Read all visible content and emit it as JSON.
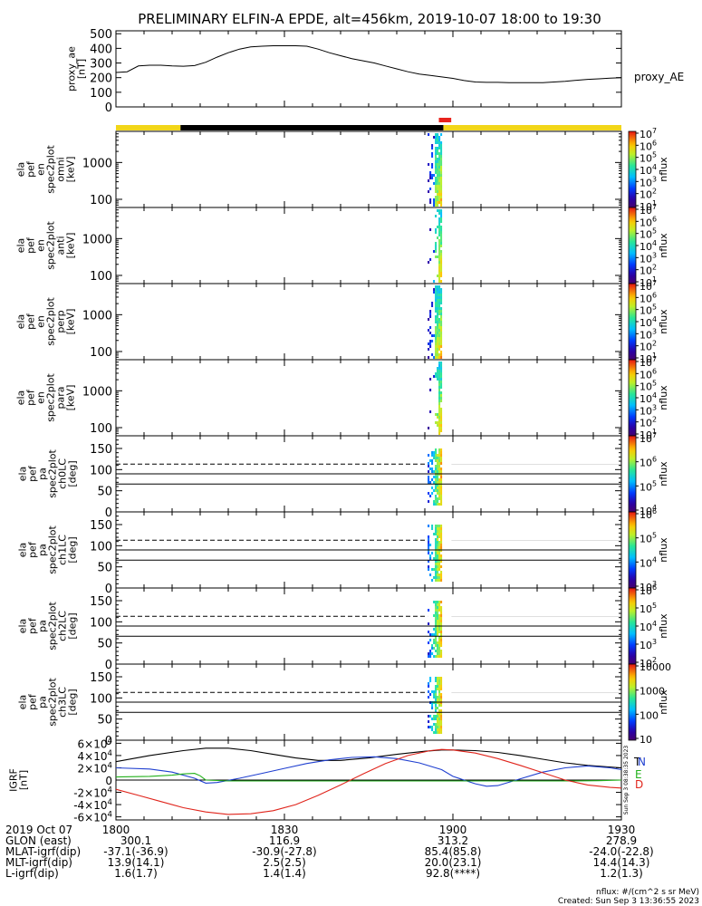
{
  "title": "PRELIMINARY ELFIN-A EPDE, alt=456km, 2019-10-07 18:00 to 19:30",
  "colors": {
    "axis": "#000000",
    "line": "#000000",
    "bar_sunlit": "#f2d619",
    "bar_shadow": "#000000",
    "bar_science": "#e8231c",
    "grf_n": "#1f3fd0",
    "grf_e": "#22b11b",
    "grf_d": "#e0241b",
    "grf_total": "#000000"
  },
  "orbit_bar": {
    "segments": [
      {
        "from": 1800,
        "to": 1811.5,
        "state": "sunlit"
      },
      {
        "from": 1811.5,
        "to": 1858.3,
        "state": "shadow"
      },
      {
        "from": 1858.3,
        "to": 1930,
        "state": "sunlit"
      }
    ],
    "science_zone": [
      1857.5,
      1859.7
    ]
  },
  "chart_data": [
    {
      "type": "line",
      "id": "proxy_ae",
      "ylabel": "proxy_ae\n[nT]",
      "legend": "proxy_AE",
      "ylim": [
        0,
        520
      ],
      "yticks": [
        0,
        100,
        200,
        300,
        400,
        500
      ],
      "x": [
        1800,
        1802,
        1804,
        1806,
        1808,
        1810,
        1812,
        1814,
        1816,
        1818,
        1820,
        1822,
        1824,
        1826,
        1828,
        1830,
        1832,
        1834,
        1836,
        1838,
        1840,
        1842,
        1844,
        1846,
        1848,
        1850,
        1852,
        1854,
        1856,
        1858,
        1900,
        1902,
        1904,
        1906,
        1908,
        1910,
        1912,
        1914,
        1916,
        1918,
        1920,
        1922,
        1924,
        1926,
        1928,
        1930
      ],
      "y": [
        235,
        240,
        280,
        285,
        285,
        280,
        278,
        282,
        305,
        340,
        370,
        395,
        410,
        415,
        418,
        418,
        418,
        415,
        395,
        370,
        350,
        330,
        315,
        300,
        280,
        260,
        240,
        225,
        215,
        205,
        195,
        180,
        170,
        168,
        168,
        166,
        165,
        165,
        166,
        170,
        175,
        182,
        188,
        192,
        196,
        200
      ]
    },
    {
      "type": "heatmap",
      "id": "omni",
      "ylabel": "ela\npef\nen\nspec2plot\nomni\n[keV]",
      "yscale": "log",
      "ylim": [
        60,
        7000
      ],
      "yticks": [
        100,
        1000
      ],
      "colorbar": {
        "label": "nflux",
        "ticks": [
          "10^1",
          "10^2",
          "10^3",
          "10^4",
          "10^5",
          "10^6",
          "10^7"
        ]
      },
      "active_time": [
        1855.5,
        1857.8
      ]
    },
    {
      "type": "heatmap",
      "id": "anti",
      "ylabel": "ela\npef\nen\nspec2plot\nanti\n[keV]",
      "yscale": "log",
      "ylim": [
        60,
        7000
      ],
      "yticks": [
        100,
        1000
      ],
      "colorbar": {
        "label": "nflux",
        "ticks": [
          "10^1",
          "10^2",
          "10^3",
          "10^4",
          "10^5",
          "10^6",
          "10^7"
        ]
      },
      "active_time": [
        1855.5,
        1857.8
      ]
    },
    {
      "type": "heatmap",
      "id": "perp",
      "ylabel": "ela\npef\nen\nspec2plot\nperp\n[keV]",
      "yscale": "log",
      "ylim": [
        60,
        7000
      ],
      "yticks": [
        100,
        1000
      ],
      "colorbar": {
        "label": "nflux",
        "ticks": [
          "10^1",
          "10^2",
          "10^3",
          "10^4",
          "10^5",
          "10^6",
          "10^7"
        ]
      },
      "active_time": [
        1855.5,
        1857.8
      ]
    },
    {
      "type": "heatmap",
      "id": "para",
      "ylabel": "ela\npef\nen\nspec2plot\npara\n[keV]",
      "yscale": "log",
      "ylim": [
        60,
        7000
      ],
      "yticks": [
        100,
        1000
      ],
      "colorbar": {
        "label": "nflux",
        "ticks": [
          "10^1",
          "10^2",
          "10^3",
          "10^4",
          "10^5",
          "10^6",
          "10^7"
        ]
      },
      "active_time": [
        1855.5,
        1857.8
      ]
    },
    {
      "type": "heatmap",
      "id": "ch0LC",
      "ylabel": "ela\npef\npa\nspec2plot\nch0LC\n[deg]",
      "yscale": "linear",
      "ylim": [
        0,
        180
      ],
      "yticks": [
        0,
        50,
        100,
        150
      ],
      "lc_lines": [
        66,
        90
      ],
      "dashed_line": 113,
      "colorbar": {
        "label": "nflux",
        "ticks": [
          "10^4",
          "10^5",
          "10^6",
          "10^7"
        ]
      },
      "active_time": [
        1855.5,
        1857.8
      ]
    },
    {
      "type": "heatmap",
      "id": "ch1LC",
      "ylabel": "ela\npef\npa\nspec2plot\nch1LC\n[deg]",
      "yscale": "linear",
      "ylim": [
        0,
        180
      ],
      "yticks": [
        0,
        50,
        100,
        150
      ],
      "lc_lines": [
        66,
        90
      ],
      "dashed_line": 113,
      "colorbar": {
        "label": "nflux",
        "ticks": [
          "10^3",
          "10^4",
          "10^5",
          "10^6"
        ]
      },
      "active_time": [
        1855.5,
        1857.8
      ]
    },
    {
      "type": "heatmap",
      "id": "ch2LC",
      "ylabel": "ela\npef\npa\nspec2plot\nch2LC\n[deg]",
      "yscale": "linear",
      "ylim": [
        0,
        180
      ],
      "yticks": [
        0,
        50,
        100,
        150
      ],
      "lc_lines": [
        66,
        90
      ],
      "dashed_line": 113,
      "colorbar": {
        "label": "nflux",
        "ticks": [
          "10^2",
          "10^3",
          "10^4",
          "10^5",
          "10^6"
        ]
      },
      "active_time": [
        1855.5,
        1857.8
      ]
    },
    {
      "type": "heatmap",
      "id": "ch3LC",
      "ylabel": "ela\npef\npa\nspec2plot\nch3LC\n[deg]",
      "yscale": "linear",
      "ylim": [
        0,
        180
      ],
      "yticks": [
        0,
        50,
        100,
        150
      ],
      "lc_lines": [
        66,
        90
      ],
      "dashed_line": 113,
      "colorbar": {
        "label": "nflux",
        "ticks": [
          "10",
          "100",
          "1000",
          "10000"
        ]
      },
      "active_time": [
        1855.5,
        1857.8
      ]
    },
    {
      "type": "line",
      "id": "igrf",
      "ylabel": "IGRF\n[nT]",
      "ylim": [
        -65000,
        65000
      ],
      "yticks": [
        -60000,
        -40000,
        -20000,
        0,
        20000,
        40000,
        60000
      ],
      "ytick_labels": [
        "-6×10^4",
        "-4×10^4",
        "-2×10^4",
        "0",
        "2×10^4",
        "4×10^4",
        "6×10^4"
      ],
      "side_label": "Sun Sep  3 08:38:35 2023",
      "series": [
        {
          "name": "T",
          "color_key": "grf_total",
          "x": [
            1800,
            1806,
            1812,
            1816,
            1820,
            1824,
            1828,
            1832,
            1836,
            1840,
            1845,
            1850,
            1855,
            1858,
            1900,
            1904,
            1908,
            1912,
            1916,
            1920,
            1924,
            1930
          ],
          "y": [
            30000,
            40000,
            48000,
            52000,
            52000,
            48000,
            42000,
            36000,
            32000,
            32000,
            36000,
            42000,
            47000,
            49000,
            49000,
            48000,
            45000,
            40000,
            34000,
            28000,
            24000,
            20000
          ]
        },
        {
          "name": "N",
          "color_key": "grf_n",
          "x": [
            1800,
            1806,
            1810,
            1814,
            1816,
            1818,
            1822,
            1826,
            1830,
            1834,
            1838,
            1842,
            1846,
            1850,
            1854,
            1858,
            1900,
            1904,
            1906,
            1908,
            1912,
            1916,
            1920,
            1924,
            1928,
            1930
          ],
          "y": [
            20000,
            18000,
            13000,
            3000,
            -5000,
            -4000,
            3000,
            11000,
            19000,
            27000,
            33000,
            37000,
            38000,
            35000,
            28000,
            17000,
            6000,
            -6000,
            -10000,
            -9000,
            2000,
            13000,
            20000,
            23000,
            20000,
            17000
          ]
        },
        {
          "name": "E",
          "color_key": "grf_e",
          "x": [
            1800,
            1806,
            1810,
            1812,
            1814,
            1815,
            1816,
            1820,
            1830,
            1840,
            1850,
            1860,
            1900,
            1910,
            1920,
            1926,
            1930
          ],
          "y": [
            5000,
            6000,
            8000,
            10000,
            11000,
            7000,
            0,
            -1500,
            -1500,
            -1500,
            -1500,
            -1500,
            -1500,
            -1500,
            -1500,
            -1000,
            0
          ]
        },
        {
          "name": "D",
          "color_key": "grf_d",
          "x": [
            1800,
            1804,
            1808,
            1812,
            1816,
            1820,
            1824,
            1828,
            1832,
            1836,
            1840,
            1844,
            1848,
            1852,
            1856,
            1858,
            1900,
            1904,
            1908,
            1912,
            1916,
            1920,
            1924,
            1928,
            1930
          ],
          "y": [
            -15000,
            -25000,
            -35000,
            -45000,
            -52000,
            -56000,
            -55000,
            -50000,
            -40000,
            -25000,
            -8000,
            10000,
            27000,
            40000,
            48000,
            50000,
            49000,
            44000,
            35000,
            24000,
            12000,
            0,
            -8000,
            -12000,
            -13000
          ]
        }
      ]
    }
  ],
  "x_axis": {
    "ticks": [
      1800,
      1830,
      1900,
      1930
    ],
    "tick_labels": [
      "1800",
      "1830",
      "1900",
      "1930"
    ],
    "xlim": [
      1800,
      1930
    ]
  },
  "footer": {
    "rows": [
      {
        "label": "2019 Oct 07",
        "values": [
          "1800",
          "1830",
          "1900",
          "1930"
        ]
      },
      {
        "label": "GLON (east)",
        "values": [
          "300.1",
          "116.9",
          "313.2",
          "278.9"
        ]
      },
      {
        "label": "MLAT-igrf(dip)",
        "values": [
          "-37.1(-36.9)",
          "-30.9(-27.8)",
          "85.4(85.8)",
          "-24.0(-22.8)"
        ]
      },
      {
        "label": "MLT-igrf(dip)",
        "values": [
          "13.9(14.1)",
          "2.5(2.5)",
          "20.0(23.1)",
          "14.4(14.3)"
        ]
      },
      {
        "label": "L-igrf(dip)",
        "values": [
          "1.6(1.7)",
          "1.4(1.4)",
          "92.8(****)",
          "1.2(1.3)"
        ]
      }
    ],
    "units_note": "nflux: #/(cm^2 s sr MeV)",
    "created": "Created: Sun Sep  3 13:36:55 2023"
  }
}
